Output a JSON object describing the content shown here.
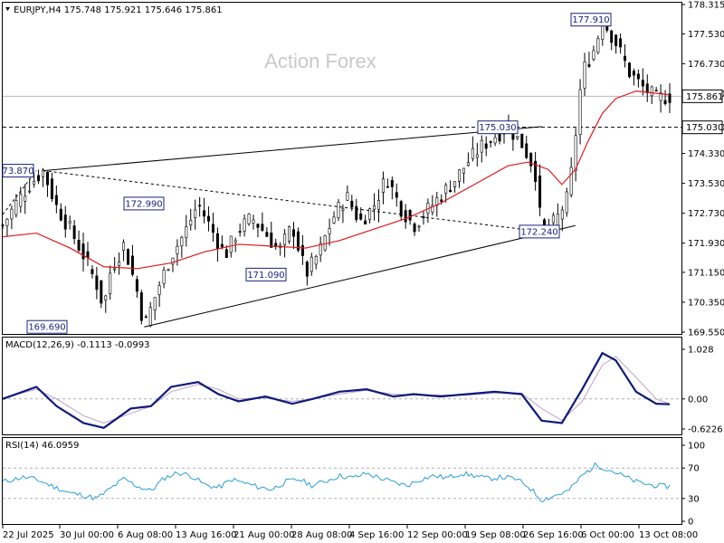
{
  "chart_data": [
    {
      "type": "candlestick",
      "title": "EURJPY,H4  175.748 175.921 175.646 175.861",
      "watermark": "Action Forex",
      "ylim": [
        169.55,
        178.315
      ],
      "y_ticks": [
        "178.315",
        "177.530",
        "176.730",
        "175.930",
        "175.030",
        "174.330",
        "173.530",
        "172.730",
        "171.930",
        "171.150",
        "170.350",
        "169.550"
      ],
      "current_price": "175.861",
      "level_line": "175.030",
      "x_ticks": [
        "22 Jul 2025",
        "30 Jul 00:00",
        "6 Aug 08:00",
        "13 Aug 16:00",
        "21 Aug 00:00",
        "28 Aug 08:00",
        "4 Sep 16:00",
        "12 Sep 00:00",
        "19 Sep 08:00",
        "26 Sep 16:00",
        "6 Oct 00:00",
        "13 Oct 08:00"
      ],
      "callouts": [
        "73.870",
        "172.990",
        "171.090",
        "169.690",
        "175.030",
        "172.240",
        "177.910"
      ],
      "close_path": [
        [
          0,
          172.4
        ],
        [
          2,
          173.0
        ],
        [
          4,
          173.5
        ],
        [
          6,
          173.87
        ],
        [
          8,
          172.9
        ],
        [
          10,
          172.3
        ],
        [
          12,
          171.6
        ],
        [
          14,
          170.8
        ],
        [
          15,
          170.2
        ],
        [
          16,
          171.2
        ],
        [
          18,
          171.9
        ],
        [
          20,
          170.6
        ],
        [
          21,
          169.69
        ],
        [
          23,
          170.7
        ],
        [
          25,
          171.6
        ],
        [
          27,
          172.2
        ],
        [
          29,
          172.99
        ],
        [
          31,
          172.3
        ],
        [
          33,
          171.6
        ],
        [
          35,
          172.3
        ],
        [
          37,
          172.6
        ],
        [
          39,
          172.2
        ],
        [
          41,
          171.7
        ],
        [
          43,
          172.4
        ],
        [
          45,
          171.09
        ],
        [
          47,
          171.7
        ],
        [
          49,
          172.6
        ],
        [
          51,
          173.2
        ],
        [
          53,
          172.5
        ],
        [
          55,
          172.9
        ],
        [
          57,
          173.7
        ],
        [
          59,
          172.9
        ],
        [
          61,
          172.4
        ],
        [
          63,
          172.8
        ],
        [
          65,
          173.2
        ],
        [
          67,
          173.6
        ],
        [
          69,
          174.1
        ],
        [
          71,
          174.5
        ],
        [
          73,
          174.8
        ],
        [
          75,
          175.03
        ],
        [
          77,
          174.6
        ],
        [
          79,
          173.9
        ],
        [
          80,
          172.24
        ],
        [
          82,
          172.5
        ],
        [
          84,
          173.2
        ],
        [
          85,
          174.8
        ],
        [
          86,
          176.5
        ],
        [
          88,
          177.2
        ],
        [
          89,
          177.91
        ],
        [
          91,
          177.3
        ],
        [
          93,
          176.5
        ],
        [
          95,
          176.1
        ],
        [
          97,
          175.8
        ],
        [
          99,
          175.861
        ]
      ],
      "ma_path": [
        [
          0,
          172.1
        ],
        [
          5,
          172.2
        ],
        [
          10,
          171.8
        ],
        [
          15,
          171.3
        ],
        [
          20,
          171.25
        ],
        [
          25,
          171.4
        ],
        [
          30,
          171.7
        ],
        [
          35,
          171.9
        ],
        [
          40,
          171.85
        ],
        [
          45,
          171.8
        ],
        [
          50,
          172.0
        ],
        [
          55,
          172.3
        ],
        [
          60,
          172.6
        ],
        [
          65,
          173.0
        ],
        [
          70,
          173.5
        ],
        [
          75,
          174.0
        ],
        [
          78,
          174.1
        ],
        [
          81,
          173.9
        ],
        [
          83,
          173.5
        ],
        [
          85,
          173.9
        ],
        [
          87,
          174.7
        ],
        [
          89,
          175.4
        ],
        [
          91,
          175.8
        ],
        [
          94,
          176.0
        ],
        [
          99,
          175.9
        ]
      ],
      "trendlines": [
        {
          "from": [
            6,
            173.87
          ],
          "to": [
            80,
            175.05
          ]
        },
        {
          "from": [
            21,
            169.69
          ],
          "to": [
            85,
            172.4
          ]
        },
        {
          "from": [
            6,
            173.87
          ],
          "to": [
            80,
            172.24
          ],
          "dashed": true
        }
      ]
    },
    {
      "type": "line",
      "title": "MACD(12,26,9) -0.1113 -0.0993",
      "ylim": [
        -0.6226,
        1.028
      ],
      "y_ticks": [
        "1.028",
        "0.00",
        "-0.6226"
      ],
      "zero_line": 0,
      "macd_path": [
        [
          0,
          0.0
        ],
        [
          5,
          0.25
        ],
        [
          8,
          -0.15
        ],
        [
          12,
          -0.5
        ],
        [
          15,
          -0.6
        ],
        [
          19,
          -0.2
        ],
        [
          22,
          -0.15
        ],
        [
          25,
          0.25
        ],
        [
          29,
          0.35
        ],
        [
          32,
          0.1
        ],
        [
          35,
          -0.05
        ],
        [
          39,
          0.05
        ],
        [
          43,
          -0.1
        ],
        [
          46,
          0.0
        ],
        [
          50,
          0.15
        ],
        [
          54,
          0.2
        ],
        [
          58,
          0.05
        ],
        [
          61,
          0.1
        ],
        [
          65,
          0.05
        ],
        [
          69,
          0.1
        ],
        [
          73,
          0.15
        ],
        [
          77,
          0.1
        ],
        [
          80,
          -0.45
        ],
        [
          83,
          -0.5
        ],
        [
          86,
          0.2
        ],
        [
          89,
          0.95
        ],
        [
          91,
          0.8
        ],
        [
          94,
          0.15
        ],
        [
          97,
          -0.1
        ],
        [
          99,
          -0.11
        ]
      ],
      "signal_path": [
        [
          0,
          0.02
        ],
        [
          5,
          0.2
        ],
        [
          8,
          0.0
        ],
        [
          12,
          -0.35
        ],
        [
          15,
          -0.5
        ],
        [
          19,
          -0.3
        ],
        [
          22,
          -0.15
        ],
        [
          25,
          0.15
        ],
        [
          29,
          0.3
        ],
        [
          32,
          0.2
        ],
        [
          35,
          0.0
        ],
        [
          39,
          0.02
        ],
        [
          43,
          -0.05
        ],
        [
          46,
          0.0
        ],
        [
          50,
          0.1
        ],
        [
          54,
          0.18
        ],
        [
          58,
          0.1
        ],
        [
          61,
          0.08
        ],
        [
          65,
          0.08
        ],
        [
          69,
          0.08
        ],
        [
          73,
          0.12
        ],
        [
          77,
          0.12
        ],
        [
          80,
          -0.2
        ],
        [
          83,
          -0.45
        ],
        [
          86,
          -0.05
        ],
        [
          89,
          0.7
        ],
        [
          91,
          0.88
        ],
        [
          94,
          0.45
        ],
        [
          97,
          0.0
        ],
        [
          99,
          -0.1
        ]
      ]
    },
    {
      "type": "line",
      "title": "RSI(14) 46.0959",
      "ylim": [
        0,
        100
      ],
      "y_ticks": [
        "100",
        "70",
        "30",
        "0"
      ],
      "dashed_levels": [
        70,
        30
      ],
      "rsi_path": [
        [
          0,
          52
        ],
        [
          3,
          58
        ],
        [
          5,
          55
        ],
        [
          8,
          44
        ],
        [
          10,
          37
        ],
        [
          12,
          34
        ],
        [
          14,
          30
        ],
        [
          16,
          43
        ],
        [
          18,
          56
        ],
        [
          20,
          46
        ],
        [
          22,
          40
        ],
        [
          24,
          57
        ],
        [
          26,
          64
        ],
        [
          28,
          60
        ],
        [
          30,
          48
        ],
        [
          32,
          44
        ],
        [
          34,
          55
        ],
        [
          36,
          50
        ],
        [
          38,
          45
        ],
        [
          40,
          42
        ],
        [
          42,
          52
        ],
        [
          44,
          55
        ],
        [
          46,
          47
        ],
        [
          48,
          53
        ],
        [
          50,
          60
        ],
        [
          52,
          57
        ],
        [
          54,
          63
        ],
        [
          56,
          57
        ],
        [
          58,
          51
        ],
        [
          60,
          47
        ],
        [
          62,
          55
        ],
        [
          64,
          60
        ],
        [
          66,
          57
        ],
        [
          68,
          63
        ],
        [
          70,
          60
        ],
        [
          72,
          56
        ],
        [
          74,
          58
        ],
        [
          76,
          56
        ],
        [
          78,
          46
        ],
        [
          80,
          28
        ],
        [
          82,
          34
        ],
        [
          84,
          40
        ],
        [
          86,
          60
        ],
        [
          88,
          74
        ],
        [
          89,
          71
        ],
        [
          90,
          68
        ],
        [
          92,
          60
        ],
        [
          94,
          52
        ],
        [
          96,
          48
        ],
        [
          98,
          46
        ],
        [
          99,
          46.1
        ]
      ]
    }
  ]
}
